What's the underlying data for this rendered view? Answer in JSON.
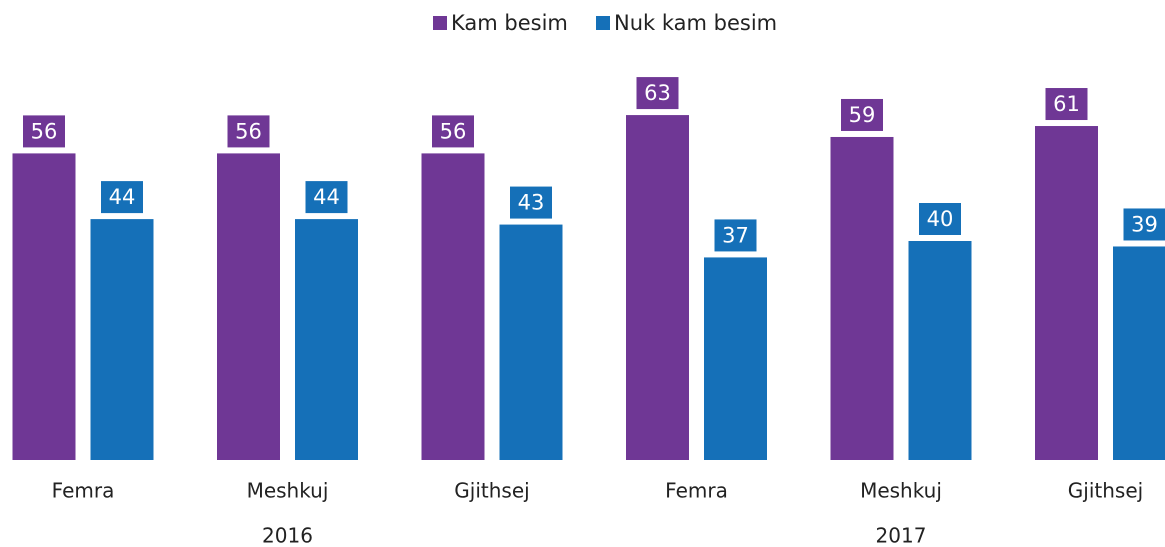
{
  "chart_data": {
    "type": "bar",
    "categories": [
      "Femra",
      "Meshkuj",
      "Gjithsej",
      "Femra",
      "Meshkuj",
      "Gjithsej"
    ],
    "groups": [
      "2016",
      "2017"
    ],
    "series": [
      {
        "name": "Kam besim",
        "color": "#6f3795",
        "values": [
          56,
          56,
          56,
          63,
          59,
          61
        ]
      },
      {
        "name": "Nuk kam besim",
        "color": "#1570b8",
        "values": [
          44,
          44,
          43,
          37,
          40,
          39
        ]
      }
    ],
    "ylim": [
      0,
      80
    ],
    "legend": "top"
  }
}
